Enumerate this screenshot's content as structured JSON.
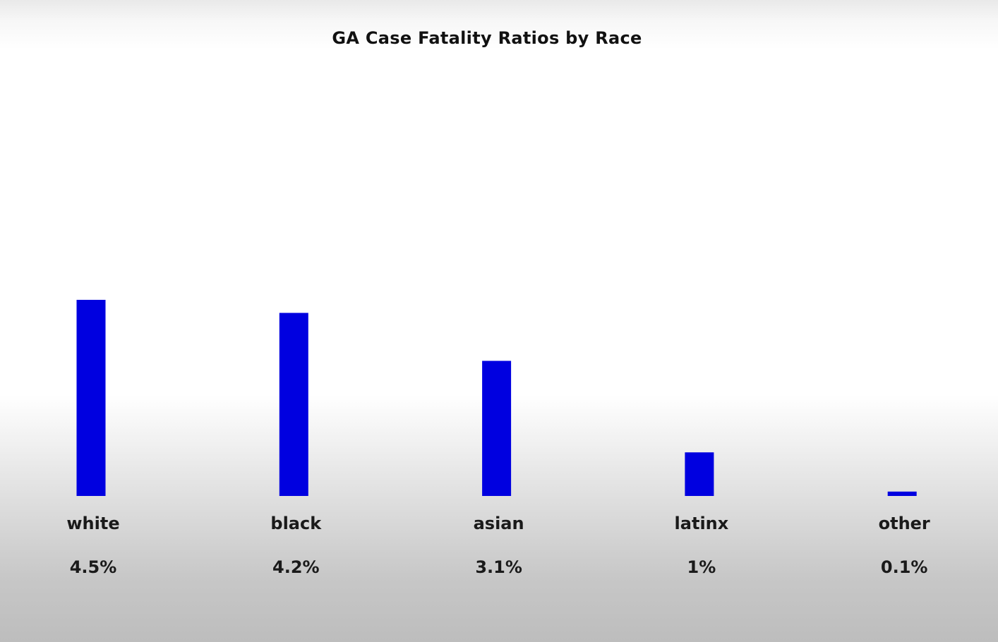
{
  "chart_data": {
    "type": "bar",
    "title": "GA Case Fatality Ratios by Race",
    "xlabel": "",
    "ylabel": "",
    "categories": [
      "white",
      "black",
      "asian",
      "latinx",
      "other"
    ],
    "values": [
      4.5,
      4.2,
      3.1,
      1,
      0.1
    ],
    "value_labels": [
      "4.5%",
      "4.2%",
      "3.1%",
      "1%",
      "0.1%"
    ],
    "ylim": [
      0,
      4.5
    ],
    "grid": false,
    "legend": "none",
    "bar_color": "#0000e0"
  }
}
